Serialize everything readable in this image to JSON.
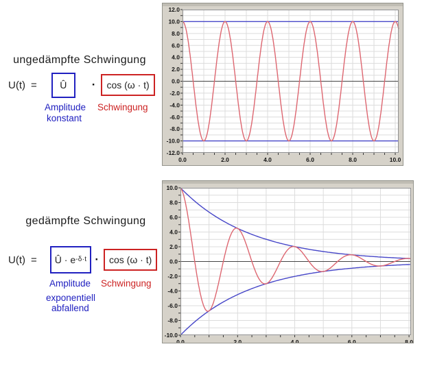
{
  "colors": {
    "formula_blue": "#2020c0",
    "formula_red": "#cc2222",
    "curve_red": "#dd6670",
    "curve_blue": "#4646c8",
    "panel_background": "#d6d2c9",
    "grid": "#dcdcdc",
    "zero_line": "#444444"
  },
  "undamped": {
    "heading": "ungedämpfte Schwingung",
    "formula": {
      "lhs": "U(t)",
      "equals": "=",
      "amplitude": "Û",
      "dot": "·",
      "oscillation": "cos (ω · t)"
    },
    "amplitude_label_line1": "Amplitude",
    "amplitude_label_line2": "konstant",
    "oscillation_label": "Schwingung"
  },
  "damped": {
    "heading": "gedämpfte Schwingung",
    "formula": {
      "lhs": "U(t)",
      "equals": "=",
      "amplitude_base": "Û · e",
      "amplitude_sup": "-δ·t",
      "dot": "·",
      "oscillation": "cos (ω · t)"
    },
    "amplitude_label_line1": "Amplitude",
    "amplitude_label_line2": "exponentiell",
    "amplitude_label_line3": "abfallend",
    "oscillation_label": "Schwingung"
  },
  "chart_data": [
    {
      "type": "line",
      "x_range": [
        0,
        10.16
      ],
      "y_range": [
        -12,
        12
      ],
      "grid_step": 1,
      "x_label_step": 2,
      "y_label_step": 2,
      "x_minor_tick_step": 0.5,
      "y_tick_step": 1,
      "x_tick_labels": [
        "0.0",
        "2.0",
        "4.0",
        "6.0",
        "8.0",
        "10.0"
      ],
      "y_tick_labels": [
        "12.0",
        "10.0",
        "8.0",
        "6.0",
        "4.0",
        "2.0",
        "0.0",
        "-2.0",
        "-4.0",
        "-6.0",
        "-8.0",
        "-10.0",
        "-12.0"
      ],
      "series": [
        {
          "name": "constant amplitude line +10",
          "type": "envelope",
          "sign": 1,
          "amplitude": 10,
          "delta": 0,
          "color": "#4646c8"
        },
        {
          "name": "constant amplitude line -10",
          "type": "envelope",
          "sign": -1,
          "amplitude": 10,
          "delta": 0,
          "color": "#4646c8"
        },
        {
          "name": "undamped oscillation 10·cos(π·t)",
          "type": "damped_cos",
          "amplitude": 10,
          "delta": 0,
          "omega_per_pi": 1,
          "color": "#dd6670"
        }
      ],
      "key_points": {
        "maxima_x": [
          0,
          2,
          4,
          6,
          8,
          10
        ],
        "maxima_y": 10,
        "minima_x": [
          1,
          3,
          5,
          7,
          9
        ],
        "minima_y": -10
      }
    },
    {
      "type": "line",
      "x_range": [
        0,
        8.07
      ],
      "y_range": [
        -10,
        10
      ],
      "grid_step": 1,
      "x_label_step": 2,
      "y_label_step": 2,
      "x_minor_tick_step": 0.5,
      "y_tick_step": 1,
      "x_tick_labels": [
        "0.0",
        "2.0",
        "4.0",
        "6.0",
        "8.0"
      ],
      "y_tick_labels": [
        "10.0",
        "8.0",
        "6.0",
        "4.0",
        "2.0",
        "0.0",
        "-2.0",
        "-4.0",
        "-6.0",
        "-8.0",
        "-10.0"
      ],
      "series": [
        {
          "name": "upper exponential envelope +10·e^(-0.4·t)",
          "type": "envelope",
          "sign": 1,
          "amplitude": 10,
          "delta": 0.4,
          "color": "#4646c8"
        },
        {
          "name": "lower exponential envelope -10·e^(-0.4·t)",
          "type": "envelope",
          "sign": -1,
          "amplitude": 10,
          "delta": 0.4,
          "color": "#4646c8"
        },
        {
          "name": "damped oscillation 10·e^(-0.4·t)·cos(π·t)",
          "type": "damped_cos",
          "amplitude": 10,
          "delta": 0.4,
          "omega_per_pi": 1,
          "color": "#dd6670"
        }
      ],
      "key_points": {
        "envelope_at_x": [
          0,
          1,
          2,
          3,
          4
        ],
        "envelope_y": [
          10,
          6.7,
          4.5,
          3.0,
          2.0
        ]
      }
    }
  ]
}
